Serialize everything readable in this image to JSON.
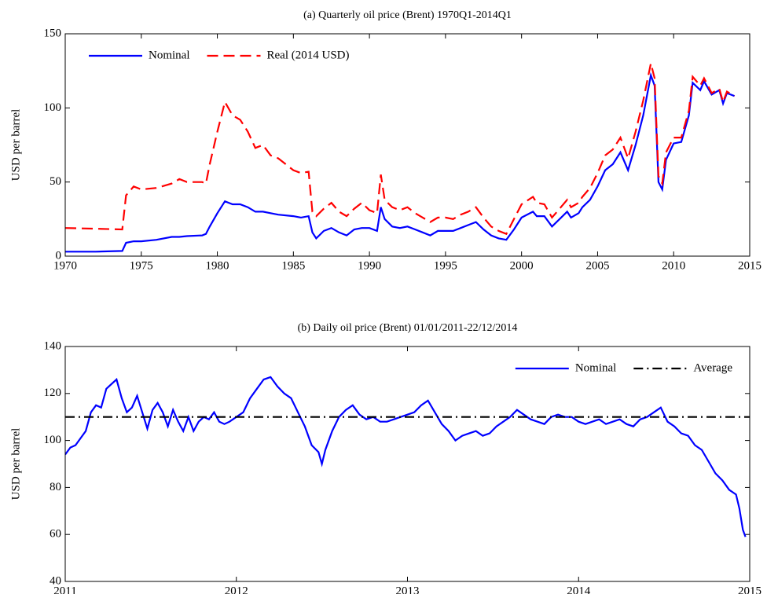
{
  "chart_data": [
    {
      "type": "line",
      "title": "(a) Quarterly oil price (Brent) 1970Q1-2014Q1",
      "ylabel": "USD per barrel",
      "xlim": [
        1970,
        2015
      ],
      "xticks": [
        1970,
        1975,
        1980,
        1985,
        1990,
        1995,
        2000,
        2005,
        2010,
        2015
      ],
      "ylim": [
        0,
        150
      ],
      "yticks": [
        0,
        50,
        100,
        150
      ],
      "legend": "upper left",
      "x": [
        1970,
        1972,
        1973.75,
        1974,
        1974.5,
        1975,
        1976,
        1977,
        1977.5,
        1978,
        1979,
        1979.25,
        1979.5,
        1980,
        1980.5,
        1981,
        1981.5,
        1982,
        1982.5,
        1983,
        1983.5,
        1984,
        1985,
        1985.5,
        1986,
        1986.25,
        1986.5,
        1987,
        1987.5,
        1988,
        1988.5,
        1989,
        1989.5,
        1990,
        1990.5,
        1990.75,
        1991,
        1991.5,
        1992,
        1992.5,
        1993,
        1993.5,
        1994,
        1994.5,
        1995,
        1995.5,
        1996,
        1996.5,
        1997,
        1997.5,
        1998,
        1998.5,
        1999,
        1999.5,
        2000,
        2000.75,
        2001,
        2001.5,
        2002,
        2002.5,
        2003,
        2003.25,
        2003.75,
        2004,
        2004.5,
        2005,
        2005.5,
        2006,
        2006.5,
        2007,
        2007.5,
        2008,
        2008.5,
        2008.75,
        2009,
        2009.25,
        2009.5,
        2010,
        2010.5,
        2011,
        2011.25,
        2011.75,
        2012,
        2012.5,
        2013,
        2013.25,
        2013.5,
        2014
      ],
      "series": [
        {
          "name": "Nominal",
          "color": "#0000ff",
          "dash": "solid",
          "values": [
            3,
            3,
            3.5,
            9,
            10,
            10,
            11,
            13,
            13,
            13.5,
            14,
            15,
            20,
            29,
            37,
            35,
            35,
            33,
            30,
            30,
            29,
            28,
            27,
            26,
            27,
            16,
            12,
            17,
            19,
            16,
            14,
            18,
            19,
            19,
            17,
            33,
            25,
            20,
            19,
            20,
            18,
            16,
            14,
            17,
            17,
            17,
            19,
            21,
            23,
            18,
            14,
            12,
            11,
            18,
            26,
            30,
            27,
            27,
            20,
            25,
            30,
            26,
            29,
            33,
            38,
            47,
            58,
            62,
            70,
            58,
            75,
            95,
            122,
            115,
            50,
            45,
            65,
            76,
            77,
            95,
            117,
            112,
            118,
            109,
            112,
            103,
            110,
            108
          ]
        },
        {
          "name": "Real (2014 USD)",
          "color": "#ff0000",
          "dash": "dashed",
          "values": [
            19,
            18.5,
            18,
            41,
            47,
            45,
            46,
            49,
            52,
            50,
            50,
            49,
            62,
            84,
            104,
            95,
            92,
            84,
            73,
            75,
            68,
            66,
            58,
            56,
            57,
            30,
            27,
            32,
            36,
            30,
            27,
            32,
            36,
            31,
            29,
            55,
            38,
            33,
            31,
            33,
            29,
            26,
            23,
            26,
            26,
            25,
            28,
            30,
            33,
            26,
            20,
            17,
            15,
            25,
            35,
            40,
            36,
            35,
            26,
            32,
            38,
            33,
            36,
            40,
            46,
            56,
            68,
            72,
            80,
            66,
            84,
            105,
            130,
            120,
            54,
            49,
            70,
            80,
            80,
            98,
            121,
            115,
            120,
            110,
            113,
            104,
            111,
            108
          ]
        }
      ]
    },
    {
      "type": "line",
      "title": "(b) Daily oil price (Brent) 01/01/2011-22/12/2014",
      "ylabel": "USD per barrel",
      "xlim": [
        2011,
        2015
      ],
      "xticks": [
        2011,
        2012,
        2013,
        2014,
        2015
      ],
      "ylim": [
        40,
        140
      ],
      "yticks": [
        40,
        60,
        80,
        100,
        120,
        140
      ],
      "legend": "upper right",
      "series": [
        {
          "name": "Nominal",
          "color": "#0000ff",
          "dash": "solid",
          "x": [
            2011.0,
            2011.03,
            2011.06,
            2011.09,
            2011.12,
            2011.15,
            2011.18,
            2011.21,
            2011.24,
            2011.27,
            2011.3,
            2011.33,
            2011.36,
            2011.39,
            2011.42,
            2011.45,
            2011.48,
            2011.51,
            2011.54,
            2011.57,
            2011.6,
            2011.63,
            2011.66,
            2011.69,
            2011.72,
            2011.75,
            2011.78,
            2011.81,
            2011.84,
            2011.87,
            2011.9,
            2011.93,
            2011.96,
            2012.0,
            2012.04,
            2012.08,
            2012.12,
            2012.16,
            2012.2,
            2012.24,
            2012.28,
            2012.32,
            2012.36,
            2012.4,
            2012.44,
            2012.48,
            2012.5,
            2012.52,
            2012.56,
            2012.6,
            2012.64,
            2012.68,
            2012.72,
            2012.76,
            2012.8,
            2012.84,
            2012.88,
            2012.92,
            2012.96,
            2013.0,
            2013.04,
            2013.08,
            2013.12,
            2013.16,
            2013.2,
            2013.24,
            2013.28,
            2013.32,
            2013.36,
            2013.4,
            2013.44,
            2013.48,
            2013.52,
            2013.56,
            2013.6,
            2013.64,
            2013.68,
            2013.72,
            2013.76,
            2013.8,
            2013.84,
            2013.88,
            2013.92,
            2013.96,
            2014.0,
            2014.04,
            2014.08,
            2014.12,
            2014.16,
            2014.2,
            2014.24,
            2014.28,
            2014.32,
            2014.36,
            2014.4,
            2014.44,
            2014.48,
            2014.52,
            2014.56,
            2014.6,
            2014.64,
            2014.68,
            2014.72,
            2014.76,
            2014.8,
            2014.84,
            2014.88,
            2014.92,
            2014.94,
            2014.96,
            2014.975
          ],
          "values": [
            94,
            97,
            98,
            101,
            104,
            112,
            115,
            114,
            122,
            124,
            126,
            118,
            112,
            114,
            119,
            112,
            105,
            113,
            116,
            112,
            106,
            113,
            108,
            104,
            110,
            104,
            108,
            110,
            109,
            112,
            108,
            107,
            108,
            110,
            112,
            118,
            122,
            126,
            127,
            123,
            120,
            118,
            112,
            106,
            98,
            95,
            90,
            96,
            104,
            110,
            113,
            115,
            111,
            109,
            110,
            108,
            108,
            109,
            110,
            111,
            112,
            115,
            117,
            112,
            107,
            104,
            100,
            102,
            103,
            104,
            102,
            103,
            106,
            108,
            110,
            113,
            111,
            109,
            108,
            107,
            110,
            111,
            110,
            110,
            108,
            107,
            108,
            109,
            107,
            108,
            109,
            107,
            106,
            109,
            110,
            112,
            114,
            108,
            106,
            103,
            102,
            98,
            96,
            91,
            86,
            83,
            79,
            77,
            71,
            62,
            59
          ]
        },
        {
          "name": "Average",
          "color": "#000000",
          "dash": "dashdot",
          "x": [
            2011,
            2015
          ],
          "values": [
            110,
            110
          ]
        }
      ]
    }
  ]
}
